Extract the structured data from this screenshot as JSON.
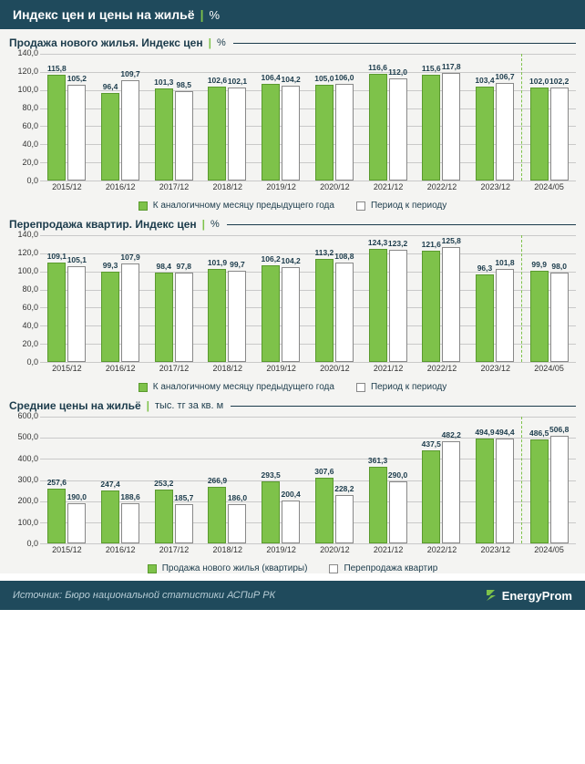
{
  "colors": {
    "header_bg": "#1f4a5c",
    "body_bg": "#f4f4f2",
    "footer_bg": "#1f4a5c",
    "series_a": "#7ec24a",
    "series_b": "#ffffff",
    "bar_border_a": "#5a9a2e",
    "bar_border_b": "#888888",
    "grid": "#c9c9c9",
    "text": "#1b3b4b",
    "footer_text": "#b8cdd6",
    "brand_text": "#ffffff"
  },
  "header": {
    "title": "Индекс цен и цены на жильё",
    "unit": "%"
  },
  "footer": {
    "source": "Источник: Бюро национальной статистики АСПиР РК",
    "brand": "EnergyProm"
  },
  "categories": [
    "2015/12",
    "2016/12",
    "2017/12",
    "2018/12",
    "2019/12",
    "2020/12",
    "2021/12",
    "2022/12",
    "2023/12",
    "2024/05"
  ],
  "divider_before_index": 9,
  "charts": [
    {
      "id": "chart-new",
      "title": "Продажа нового жилья. Индекс цен",
      "unit": "%",
      "ymin": 0,
      "ymax": 140,
      "ystep": 20,
      "series_a_label": "К аналогичному месяцу предыдущего года",
      "series_b_label": "Период к периоду",
      "series_a": [
        115.8,
        96.4,
        101.3,
        102.6,
        106.4,
        105.0,
        116.6,
        115.6,
        103.4,
        102.0
      ],
      "series_b": [
        105.2,
        109.7,
        98.5,
        102.1,
        104.2,
        106.0,
        112.0,
        117.8,
        106.7,
        102.2
      ],
      "labels_a": [
        "115,8",
        "96,4",
        "101,3",
        "102,6",
        "106,4",
        "105,0",
        "116,6",
        "115,6",
        "103,4",
        "102,0"
      ],
      "labels_b": [
        "105,2",
        "109,7",
        "98,5",
        "102,1",
        "104,2",
        "106,0",
        "112,0",
        "117,8",
        "106,7",
        "102,2"
      ]
    },
    {
      "id": "chart-resale",
      "title": "Перепродажа квартир. Индекс цен",
      "unit": "%",
      "ymin": 0,
      "ymax": 140,
      "ystep": 20,
      "series_a_label": "К аналогичному месяцу предыдущего года",
      "series_b_label": "Период к периоду",
      "series_a": [
        109.1,
        99.3,
        98.4,
        101.9,
        106.2,
        113.2,
        124.3,
        121.6,
        96.3,
        99.9
      ],
      "series_b": [
        105.1,
        107.9,
        97.8,
        99.7,
        104.2,
        108.8,
        123.2,
        125.8,
        101.8,
        98.0
      ],
      "labels_a": [
        "109,1",
        "99,3",
        "98,4",
        "101,9",
        "106,2",
        "113,2",
        "124,3",
        "121,6",
        "96,3",
        "99,9"
      ],
      "labels_b": [
        "105,1",
        "107,9",
        "97,8",
        "99,7",
        "104,2",
        "108,8",
        "123,2",
        "125,8",
        "101,8",
        "98,0"
      ]
    },
    {
      "id": "chart-prices",
      "title": "Средние цены на жильё",
      "unit": "тыс. тг за кв. м",
      "ymin": 0,
      "ymax": 600,
      "ystep": 100,
      "series_a_label": "Продажа нового жилья (квартиры)",
      "series_b_label": "Перепродажа квартир",
      "series_a": [
        257.6,
        247.4,
        253.2,
        266.9,
        293.5,
        307.6,
        361.3,
        437.5,
        494.9,
        486.5
      ],
      "series_b": [
        190.0,
        188.6,
        185.7,
        186.0,
        200.4,
        228.2,
        290.0,
        482.2,
        494.4,
        506.8
      ],
      "labels_a": [
        "257,6",
        "247,4",
        "253,2",
        "266,9",
        "293,5",
        "307,6",
        "361,3",
        "437,5",
        "494,9",
        "486,5"
      ],
      "labels_b": [
        "190,0",
        "188,6",
        "185,7",
        "186,0",
        "200,4",
        "228,2",
        "290,0",
        "482,2",
        "494,4",
        "506,8"
      ]
    }
  ]
}
